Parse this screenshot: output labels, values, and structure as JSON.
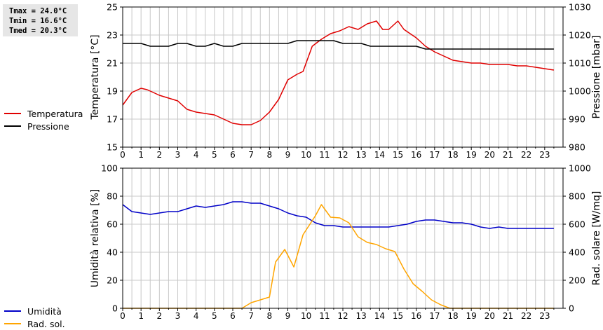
{
  "stats": {
    "tmax": "Tmax = 24.0°C",
    "tmin": "Tmin = 16.6°C",
    "tmed": "Tmed = 20.3°C"
  },
  "colors": {
    "temperature": "#e00000",
    "pressure": "#000000",
    "humidity": "#0000c8",
    "radiation": "#ffa500",
    "grid": "#c8c8c8"
  },
  "chart_data": [
    {
      "type": "line",
      "x_ticks": [
        "0",
        "1",
        "2",
        "3",
        "4",
        "5",
        "6",
        "7",
        "8",
        "9",
        "10",
        "11",
        "12",
        "13",
        "14",
        "15",
        "16",
        "17",
        "18",
        "19",
        "20",
        "21",
        "22",
        "23"
      ],
      "xlim": [
        0,
        24
      ],
      "ylabel": "Temperatura [°C]",
      "ylim": [
        15,
        25
      ],
      "y_ticks": [
        15,
        17,
        19,
        21,
        23,
        25
      ],
      "y2label": "Pressione [mbar]",
      "y2lim": [
        980,
        1030
      ],
      "y2_ticks": [
        980,
        990,
        1000,
        1010,
        1020,
        1030
      ],
      "grid": true,
      "legend_position": "left",
      "series": [
        {
          "name": "Temperatura",
          "axis": "left",
          "x": [
            0,
            0.5,
            1,
            1.33,
            1.67,
            2,
            2.5,
            3,
            3.5,
            4,
            4.5,
            5,
            5.5,
            6,
            6.5,
            7,
            7.5,
            8,
            8.5,
            9,
            9.5,
            9.83,
            10.33,
            10.83,
            11.33,
            11.83,
            12.33,
            12.83,
            13.33,
            13.83,
            14.17,
            14.5,
            15,
            15.33,
            16,
            16.5,
            17,
            17.5,
            18,
            18.5,
            19,
            19.5,
            20,
            20.5,
            21,
            21.5,
            22,
            22.5,
            23,
            23.5
          ],
          "values": [
            18.0,
            18.9,
            19.2,
            19.1,
            18.9,
            18.7,
            18.5,
            18.3,
            17.7,
            17.5,
            17.4,
            17.3,
            17.0,
            16.7,
            16.6,
            16.6,
            16.9,
            17.5,
            18.4,
            19.8,
            20.2,
            20.4,
            22.2,
            22.7,
            23.1,
            23.3,
            23.6,
            23.4,
            23.8,
            24.0,
            23.4,
            23.4,
            24.0,
            23.4,
            22.8,
            22.2,
            21.8,
            21.5,
            21.2,
            21.1,
            21.0,
            21.0,
            20.9,
            20.9,
            20.9,
            20.8,
            20.8,
            20.7,
            20.6,
            20.5
          ]
        },
        {
          "name": "Pressione",
          "axis": "right",
          "x": [
            0,
            1,
            1.5,
            2,
            2.5,
            3,
            3.5,
            4,
            4.5,
            5,
            5.5,
            6,
            6.5,
            7,
            7.5,
            8,
            8.5,
            9,
            9.5,
            10,
            10.5,
            11,
            11.5,
            12,
            12.5,
            13,
            13.5,
            14,
            14.5,
            15,
            15.5,
            16,
            16.5,
            17,
            18,
            19,
            20,
            21,
            22,
            23,
            23.5
          ],
          "values": [
            1017,
            1017,
            1016,
            1016,
            1016,
            1017,
            1017,
            1016,
            1016,
            1017,
            1016,
            1016,
            1017,
            1017,
            1017,
            1017,
            1017,
            1017,
            1018,
            1018,
            1018,
            1018,
            1018,
            1017,
            1017,
            1017,
            1016,
            1016,
            1016,
            1016,
            1016,
            1016,
            1015,
            1015,
            1015,
            1015,
            1015,
            1015,
            1015,
            1015,
            1015
          ]
        }
      ]
    },
    {
      "type": "line",
      "x_ticks": [
        "0",
        "1",
        "2",
        "3",
        "4",
        "5",
        "6",
        "7",
        "8",
        "9",
        "10",
        "11",
        "12",
        "13",
        "14",
        "15",
        "16",
        "17",
        "18",
        "19",
        "20",
        "21",
        "22",
        "23"
      ],
      "xlim": [
        0,
        24
      ],
      "ylabel": "Umidità relativa [%]",
      "ylim": [
        0,
        100
      ],
      "y_ticks": [
        0,
        20,
        40,
        60,
        80,
        100
      ],
      "y2label": "Rad. solare [W/mq]",
      "y2lim": [
        0,
        1000
      ],
      "y2_ticks": [
        0,
        200,
        400,
        600,
        800,
        1000
      ],
      "grid": true,
      "legend_position": "left",
      "series": [
        {
          "name": "Umidità",
          "axis": "left",
          "x": [
            0,
            0.5,
            1,
            1.5,
            2,
            2.5,
            3,
            3.5,
            4,
            4.5,
            5,
            5.5,
            6,
            6.5,
            7,
            7.5,
            8,
            8.5,
            9,
            9.5,
            10,
            10.5,
            11,
            11.5,
            12,
            12.5,
            13,
            13.5,
            14,
            14.5,
            15,
            15.5,
            16,
            16.5,
            17,
            17.5,
            18,
            18.5,
            19,
            19.5,
            20,
            20.5,
            21,
            21.5,
            22,
            22.5,
            23,
            23.5
          ],
          "values": [
            74,
            69,
            68,
            67,
            68,
            69,
            69,
            71,
            73,
            72,
            73,
            74,
            76,
            76,
            75,
            75,
            73,
            71,
            68,
            66,
            65,
            61,
            59,
            59,
            58,
            58,
            58,
            58,
            58,
            58,
            59,
            60,
            62,
            63,
            63,
            62,
            61,
            61,
            60,
            58,
            57,
            58,
            57,
            57,
            57,
            57,
            57,
            57
          ]
        },
        {
          "name": "Rad. sol.",
          "axis": "right",
          "x": [
            0,
            1,
            2,
            3,
            4,
            5,
            6,
            6.5,
            7,
            7.5,
            8,
            8.33,
            8.83,
            9.33,
            9.83,
            10.5,
            10.83,
            11.33,
            11.83,
            12.33,
            12.83,
            13.33,
            13.83,
            14.33,
            14.83,
            15.33,
            15.83,
            16.33,
            16.83,
            17.33,
            17.83,
            18.5,
            19,
            20,
            21,
            22,
            23,
            23.5
          ],
          "values": [
            0,
            0,
            0,
            0,
            0,
            0,
            0,
            0,
            40,
            60,
            80,
            330,
            420,
            295,
            525,
            660,
            740,
            650,
            645,
            610,
            510,
            470,
            455,
            425,
            405,
            280,
            175,
            120,
            60,
            25,
            0,
            0,
            0,
            0,
            0,
            0,
            0,
            0
          ]
        }
      ]
    }
  ]
}
